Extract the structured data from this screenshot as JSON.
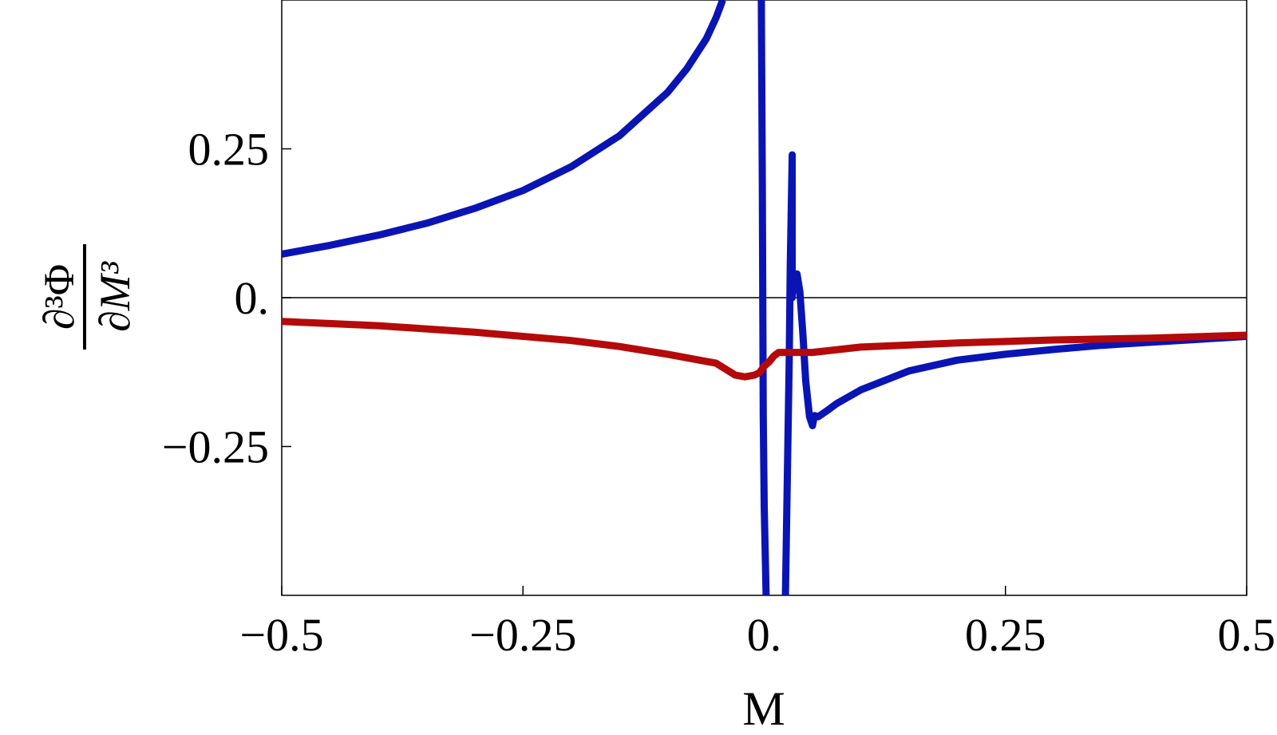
{
  "chart_data": {
    "type": "line",
    "title": "",
    "xlabel": "M",
    "ylabel": {
      "numerator": "∂³Φ",
      "denominator": "∂M³"
    },
    "xlim": [
      -0.5,
      0.5
    ],
    "ylim": [
      -0.5,
      0.5
    ],
    "x_ticks": [
      {
        "value": -0.5,
        "label": "−0.5"
      },
      {
        "value": -0.25,
        "label": "−0.25"
      },
      {
        "value": 0,
        "label": "0."
      },
      {
        "value": 0.25,
        "label": "0.25"
      },
      {
        "value": 0.5,
        "label": "0.5"
      }
    ],
    "y_ticks": [
      {
        "value": -0.25,
        "label": "−0.25"
      },
      {
        "value": 0,
        "label": "0."
      },
      {
        "value": 0.25,
        "label": "0.25"
      }
    ],
    "grid": false,
    "colors": {
      "blue": "#0a14b4",
      "red": "#b40a0a",
      "axes": "#000000"
    },
    "series": [
      {
        "color": "#0a14b4",
        "points": [
          [
            -0.5,
            0.073
          ],
          [
            -0.45,
            0.088
          ],
          [
            -0.4,
            0.105
          ],
          [
            -0.35,
            0.125
          ],
          [
            -0.3,
            0.15
          ],
          [
            -0.25,
            0.18
          ],
          [
            -0.2,
            0.22
          ],
          [
            -0.15,
            0.272
          ],
          [
            -0.1,
            0.345
          ],
          [
            -0.08,
            0.385
          ],
          [
            -0.06,
            0.435
          ],
          [
            -0.05,
            0.47
          ],
          [
            -0.043,
            0.5
          ]
        ]
      },
      {
        "color": "#0a14b4",
        "points": [
          [
            -0.003,
            0.5
          ],
          [
            -0.002,
            0.2
          ],
          [
            -0.0015,
            0.0
          ],
          [
            -0.001,
            -0.2
          ],
          [
            0.0,
            -0.35
          ],
          [
            0.002,
            -0.5
          ]
        ]
      },
      {
        "color": "#0a14b4",
        "points": [
          [
            0.022,
            -0.5
          ],
          [
            0.024,
            -0.3
          ],
          [
            0.026,
            -0.1
          ],
          [
            0.027,
            0.05
          ],
          [
            0.028,
            0.15
          ],
          [
            0.029,
            0.24
          ],
          [
            0.029,
            0.24
          ],
          [
            0.029,
            0.0
          ],
          [
            0.031,
            0.035
          ],
          [
            0.034,
            0.04
          ],
          [
            0.037,
            0.01
          ],
          [
            0.04,
            -0.06
          ],
          [
            0.043,
            -0.14
          ],
          [
            0.047,
            -0.2
          ],
          [
            0.05,
            -0.215
          ],
          [
            0.052,
            -0.198
          ],
          [
            0.056,
            -0.2
          ],
          [
            0.065,
            -0.19
          ],
          [
            0.075,
            -0.178
          ],
          [
            0.1,
            -0.155
          ],
          [
            0.15,
            -0.123
          ],
          [
            0.2,
            -0.105
          ],
          [
            0.25,
            -0.095
          ],
          [
            0.3,
            -0.087
          ],
          [
            0.35,
            -0.08
          ],
          [
            0.4,
            -0.075
          ],
          [
            0.45,
            -0.07
          ],
          [
            0.5,
            -0.065
          ]
        ]
      },
      {
        "color": "#b40a0a",
        "points": [
          [
            -0.5,
            -0.04
          ],
          [
            -0.4,
            -0.047
          ],
          [
            -0.3,
            -0.058
          ],
          [
            -0.2,
            -0.072
          ],
          [
            -0.15,
            -0.082
          ],
          [
            -0.1,
            -0.095
          ],
          [
            -0.05,
            -0.11
          ],
          [
            -0.03,
            -0.13
          ],
          [
            -0.02,
            -0.133
          ],
          [
            -0.01,
            -0.13
          ],
          [
            -0.005,
            -0.126
          ],
          [
            0.0,
            -0.115
          ],
          [
            0.005,
            -0.108
          ],
          [
            0.01,
            -0.098
          ],
          [
            0.015,
            -0.092
          ],
          [
            0.02,
            -0.092
          ],
          [
            0.05,
            -0.092
          ],
          [
            0.1,
            -0.083
          ],
          [
            0.2,
            -0.076
          ],
          [
            0.3,
            -0.071
          ],
          [
            0.4,
            -0.068
          ],
          [
            0.5,
            -0.063
          ]
        ]
      }
    ]
  }
}
